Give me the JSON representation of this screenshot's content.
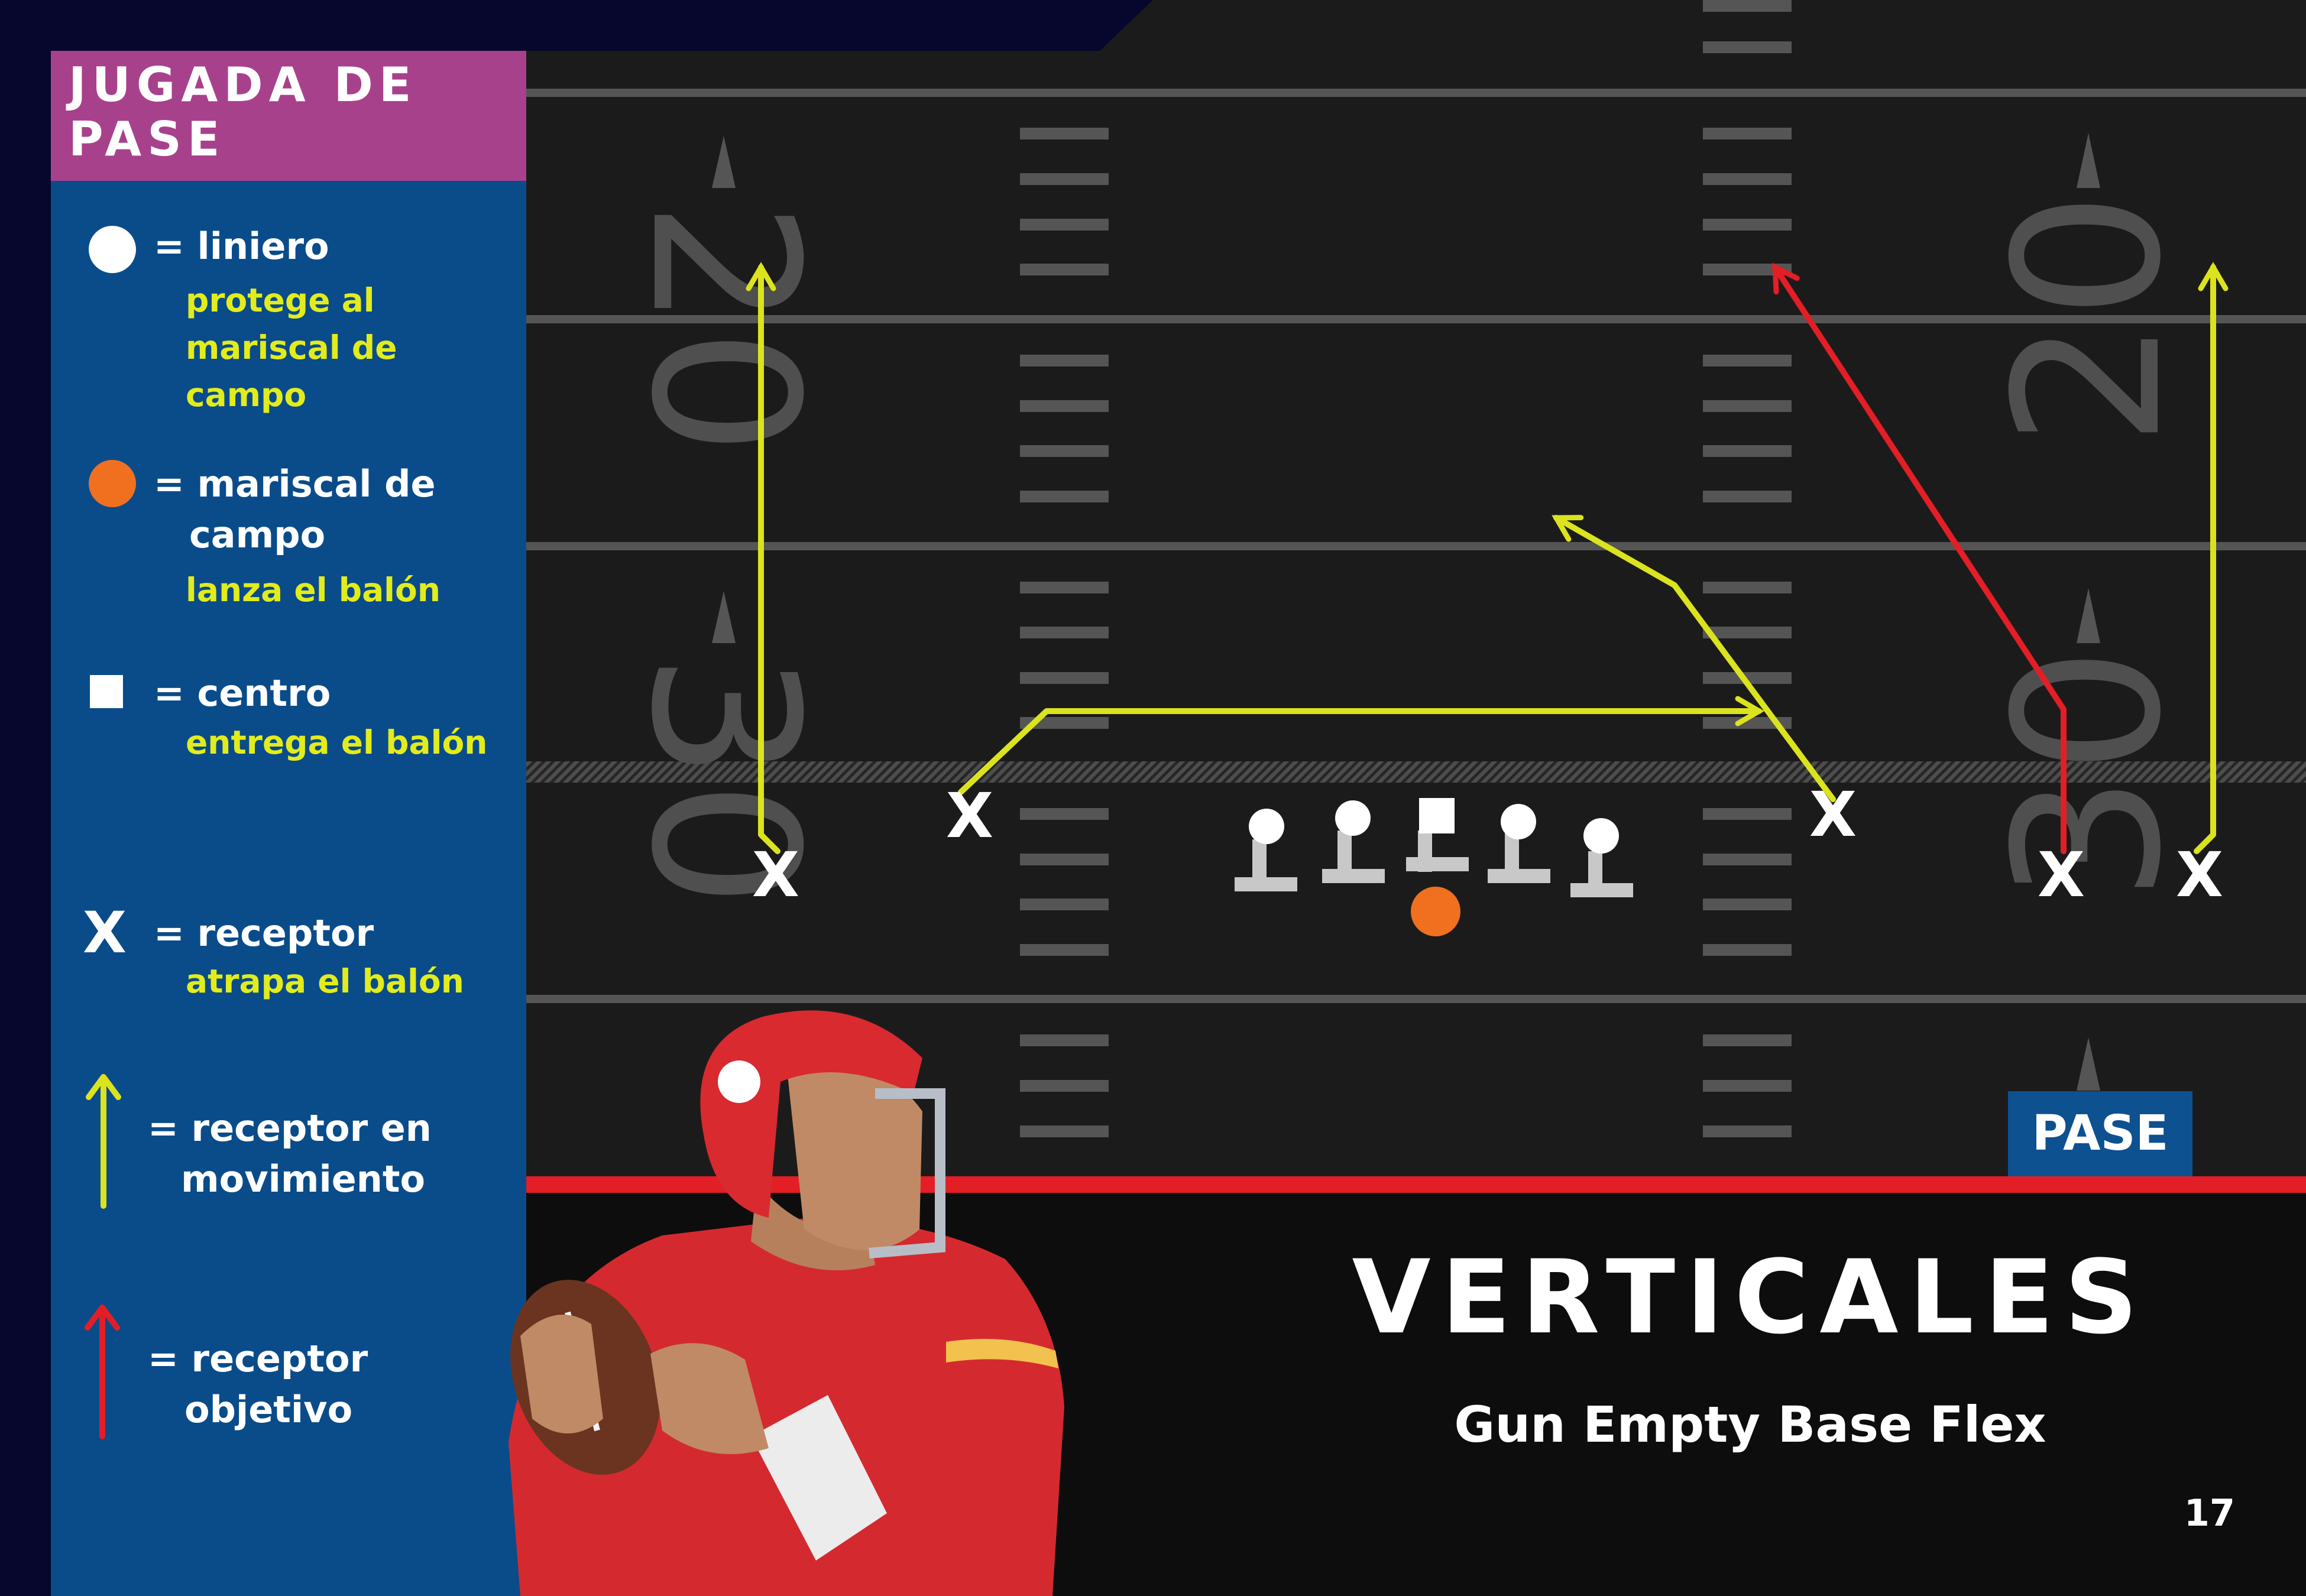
{
  "legend": {
    "title_line1": "JUGADA DE",
    "title_line2": "PASE",
    "items": [
      {
        "symbol": "white-circle",
        "label": "= liniero",
        "desc_lines": [
          "protege al",
          "mariscal de",
          "campo"
        ]
      },
      {
        "symbol": "orange-circle",
        "label_lines": [
          "= mariscal de",
          "campo"
        ],
        "desc_lines": [
          "lanza el balón"
        ]
      },
      {
        "symbol": "white-square",
        "label": "= centro",
        "desc_lines": [
          "entrega el balón"
        ]
      },
      {
        "symbol": "x-mark",
        "glyph": "X",
        "label": "= receptor",
        "desc_lines": [
          "atrapa el balón"
        ]
      },
      {
        "symbol": "yellow-arrow",
        "label_lines": [
          "= receptor en",
          "movimiento"
        ]
      },
      {
        "symbol": "red-arrow",
        "label_lines": [
          "= receptor",
          "objetivo"
        ]
      }
    ]
  },
  "field": {
    "yard_numbers": [
      "20",
      "30",
      "20",
      "30"
    ],
    "receiver_glyph": "X"
  },
  "badge": "PASE",
  "play": {
    "title": "VERTICALES",
    "formation": "Gun Empty Base Flex"
  },
  "page_number": "17",
  "colors": {
    "background": "#07062c",
    "legend_panel": "#0a4c8a",
    "legend_title": "#a8418c",
    "field": "#1c1b1c",
    "yellow_route": "#dbe31e",
    "red_route": "#e31e26",
    "quarterback": "#f07020",
    "sideline": "#e31e26",
    "badge": "#0d5191"
  }
}
